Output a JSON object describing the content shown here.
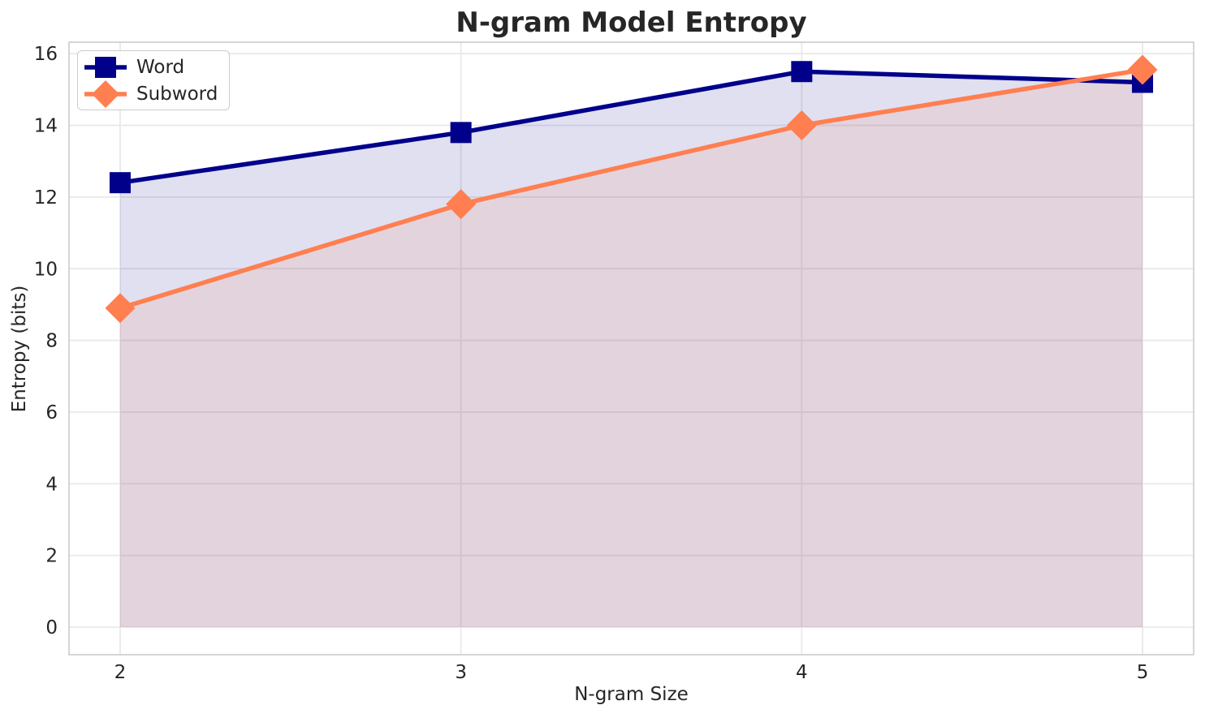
{
  "chart_data": {
    "type": "line",
    "title": "N-gram Model Entropy",
    "xlabel": "N-gram Size",
    "ylabel": "Entropy (bits)",
    "x": [
      2,
      3,
      4,
      5
    ],
    "series": [
      {
        "name": "Word",
        "marker": "square",
        "color": "#00008B",
        "values": [
          12.4,
          13.8,
          15.5,
          15.2
        ]
      },
      {
        "name": "Subword",
        "marker": "diamond",
        "color": "#FF7F50",
        "values": [
          8.9,
          11.8,
          14.0,
          15.55
        ]
      }
    ],
    "area_fill": true,
    "fill_alpha": 0.12,
    "fill_baseline": 0,
    "xticks": [
      "2",
      "3",
      "4",
      "5"
    ],
    "xtick_values": [
      2,
      3,
      4,
      5
    ],
    "yticks": [
      "0",
      "2",
      "4",
      "6",
      "8",
      "10",
      "12",
      "14",
      "16"
    ],
    "ytick_values": [
      0,
      2,
      4,
      6,
      8,
      10,
      12,
      14,
      16
    ],
    "xlim": [
      1.85,
      5.15
    ],
    "ylim": [
      -0.77,
      16.32
    ],
    "grid": true,
    "legend_position": "upper left",
    "colors": {
      "grid": "#e9e9e9",
      "spine": "#cccccc",
      "text": "#262626",
      "background": "#ffffff"
    }
  }
}
